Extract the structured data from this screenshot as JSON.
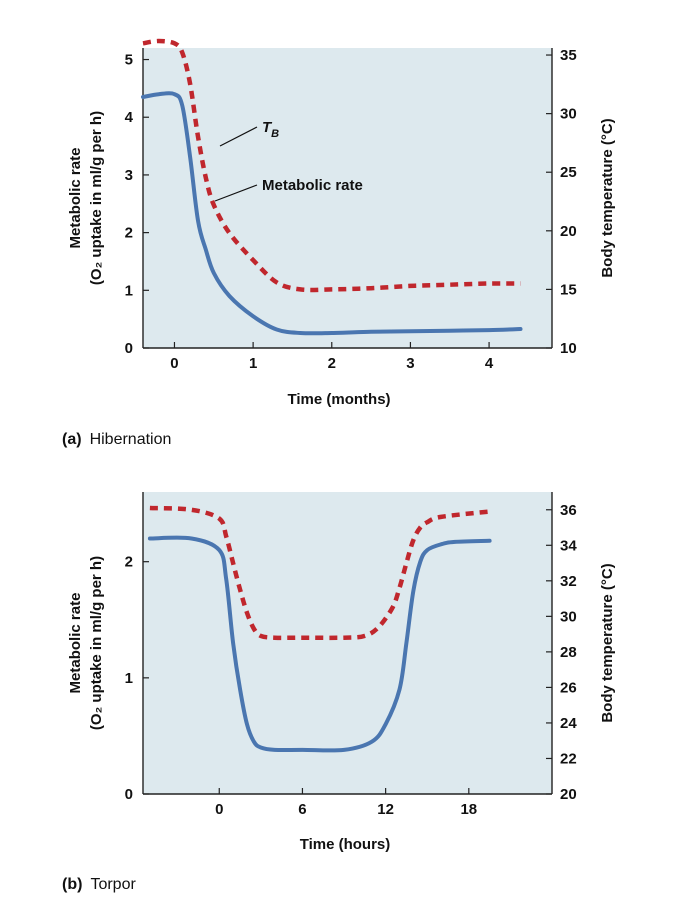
{
  "colors": {
    "panel_bg": "#dde9ee",
    "metabolic": "#4a76b0",
    "temperature": "#c0272d"
  },
  "chart_data": [
    {
      "type": "line",
      "panel_letter": "(a)",
      "panel_title": "Hibernation",
      "xlabel": "Time (months)",
      "ylabel_left_line1": "Metabolic rate",
      "ylabel_left_line2": "(O₂ uptake in ml/g per h)",
      "ylabel_right": "Body temperature (°C)",
      "xlim": [
        -0.4,
        4.8
      ],
      "ylim_left": [
        0,
        5.2
      ],
      "ylim_right": [
        10,
        35.6
      ],
      "xticks": [
        0,
        1,
        2,
        3,
        4
      ],
      "yticks_left": [
        0,
        1,
        2,
        3,
        4,
        5
      ],
      "yticks_right": [
        10,
        15,
        20,
        25,
        30,
        35
      ],
      "annotations": [
        {
          "text_main": "T",
          "text_sub": "B",
          "series": "Body temperature"
        },
        {
          "text_main": "Metabolic rate",
          "text_sub": "",
          "series": "Metabolic rate"
        }
      ],
      "series": [
        {
          "axis": "left",
          "style": "solid",
          "x": [
            -0.4,
            -0.2,
            0,
            0.1,
            0.2,
            0.3,
            0.4,
            0.5,
            0.7,
            1.0,
            1.3,
            1.6,
            2.0,
            2.5,
            3.0,
            3.5,
            4.0,
            4.4
          ],
          "y": [
            4.35,
            4.4,
            4.4,
            4.2,
            3.3,
            2.2,
            1.7,
            1.3,
            0.9,
            0.55,
            0.32,
            0.26,
            0.26,
            0.28,
            0.29,
            0.3,
            0.31,
            0.33
          ]
        },
        {
          "axis": "right",
          "style": "dashed",
          "x": [
            -0.4,
            -0.2,
            0,
            0.1,
            0.2,
            0.3,
            0.4,
            0.5,
            0.7,
            1.0,
            1.3,
            1.6,
            2.0,
            2.5,
            3.0,
            3.5,
            4.0,
            4.4
          ],
          "y": [
            36.0,
            36.2,
            36.0,
            35.2,
            32.5,
            28.0,
            24.5,
            22.2,
            19.8,
            17.5,
            15.6,
            15.0,
            15.0,
            15.1,
            15.3,
            15.4,
            15.5,
            15.5
          ]
        }
      ]
    },
    {
      "type": "line",
      "panel_letter": "(b)",
      "panel_title": "Torpor",
      "xlabel": "Time (hours)",
      "ylabel_left_line1": "Metabolic rate",
      "ylabel_left_line2": "(O₂ uptake in ml/g per h)",
      "ylabel_right": "Body temperature (°C)",
      "xlim": [
        -5.5,
        24
      ],
      "ylim_left": [
        0,
        2.6
      ],
      "ylim_right": [
        20,
        37
      ],
      "xticks": [
        0,
        6,
        12,
        18
      ],
      "yticks_left": [
        0,
        1,
        2
      ],
      "yticks_right": [
        20,
        22,
        24,
        26,
        28,
        30,
        32,
        34,
        36
      ],
      "annotations": [],
      "series": [
        {
          "axis": "left",
          "style": "solid",
          "x": [
            -5,
            -2,
            0,
            0.5,
            1,
            1.5,
            2,
            2.5,
            3,
            4,
            6,
            9,
            11,
            12,
            13,
            13.5,
            14,
            14.5,
            15,
            16,
            17,
            19.5
          ],
          "y": [
            2.2,
            2.2,
            2.1,
            1.85,
            1.3,
            0.9,
            0.6,
            0.45,
            0.4,
            0.38,
            0.38,
            0.38,
            0.45,
            0.6,
            0.9,
            1.3,
            1.75,
            2.0,
            2.1,
            2.15,
            2.17,
            2.18
          ]
        },
        {
          "axis": "right",
          "style": "dashed",
          "x": [
            -5,
            -2,
            0,
            0.5,
            1,
            1.5,
            2,
            2.5,
            3,
            4,
            6,
            9,
            10.5,
            11.5,
            12.5,
            13,
            13.5,
            14,
            14.5,
            15,
            16,
            19.5
          ],
          "y": [
            36.1,
            36.0,
            35.5,
            34.5,
            33.0,
            31.5,
            30.2,
            29.3,
            28.9,
            28.8,
            28.8,
            28.8,
            28.9,
            29.4,
            30.5,
            31.6,
            33.0,
            34.3,
            35.0,
            35.3,
            35.6,
            35.9
          ]
        }
      ]
    }
  ]
}
